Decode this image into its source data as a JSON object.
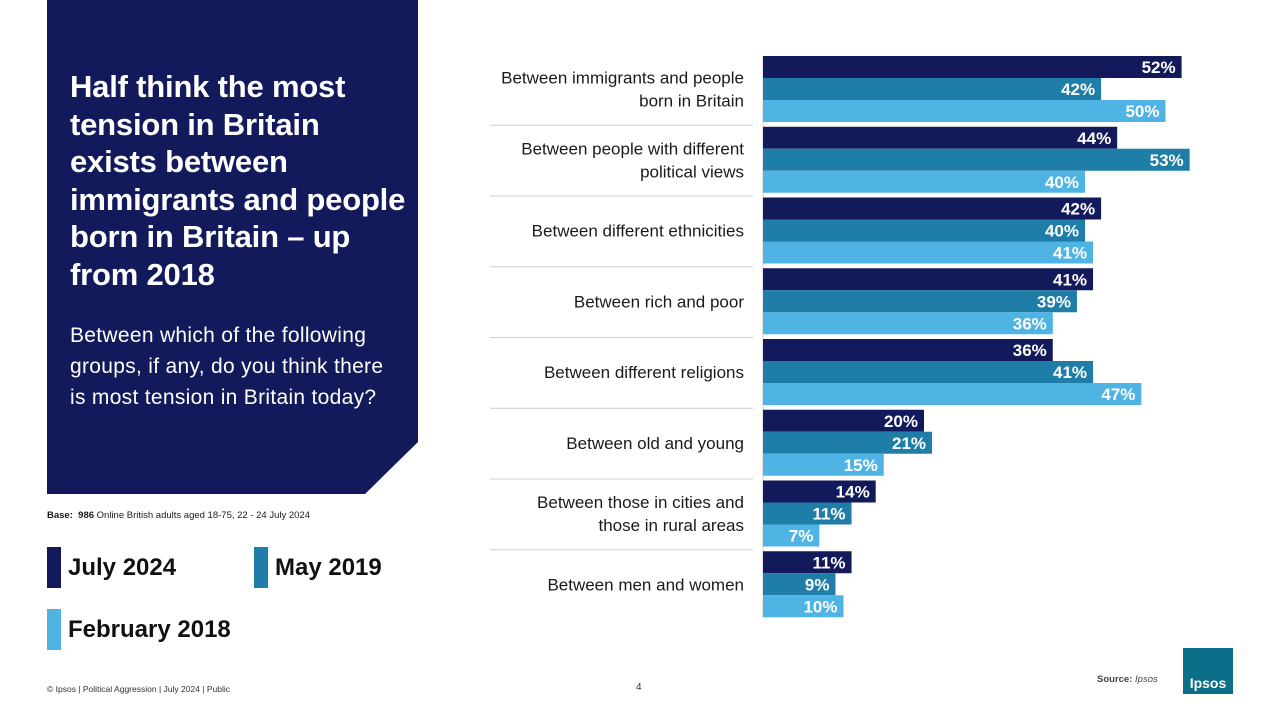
{
  "headline": "Half think the most tension in Britain exists between immigrants and people born in Britain – up from 2018",
  "question": "Between which of the following groups, if any, do you think there is most tension in Britain today?",
  "base": {
    "label": "Base:",
    "count": "986",
    "text": "Online British adults aged 18-75, 22 - 24 July 2024"
  },
  "legend": [
    {
      "label": "July 2024",
      "color": "#131a5b"
    },
    {
      "label": "May 2019",
      "color": "#1f7ea8"
    },
    {
      "label": "February 2018",
      "color": "#4fb3e3"
    }
  ],
  "footer": {
    "text": "© Ipsos | Political Aggression | July 2024 | Public",
    "page": "4",
    "source_label": "Source:",
    "source_value": "Ipsos",
    "logo": "Ipsos"
  },
  "chart_data": {
    "type": "bar",
    "orientation": "horizontal",
    "categories": [
      "Between immigrants and people born in Britain",
      "Between people with different political views",
      "Between different ethnicities",
      "Between rich and poor",
      "Between different religions",
      "Between old and young",
      "Between those in cities and those in rural areas",
      "Between men and women"
    ],
    "category_lines": [
      [
        "Between immigrants and people",
        "born in Britain"
      ],
      [
        "Between people with different",
        "political views"
      ],
      [
        "Between different ethnicities"
      ],
      [
        "Between rich and poor"
      ],
      [
        "Between different religions"
      ],
      [
        "Between old and young"
      ],
      [
        "Between those in cities and",
        "those in rural areas"
      ],
      [
        "Between men and women"
      ]
    ],
    "series": [
      {
        "name": "July 2024",
        "color": "#131a5b",
        "values": [
          52,
          44,
          42,
          41,
          36,
          20,
          14,
          11
        ]
      },
      {
        "name": "May 2019",
        "color": "#1f7ea8",
        "values": [
          42,
          53,
          40,
          39,
          41,
          21,
          11,
          9
        ]
      },
      {
        "name": "February 2018",
        "color": "#4fb3e3",
        "values": [
          50,
          40,
          41,
          36,
          47,
          15,
          7,
          10
        ]
      }
    ],
    "value_suffix": "%",
    "xlim": [
      0,
      60
    ]
  }
}
